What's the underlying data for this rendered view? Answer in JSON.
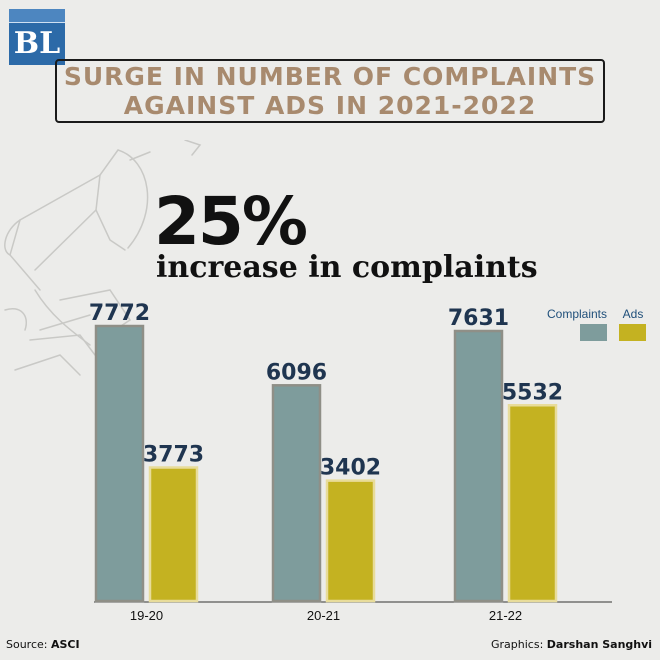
{
  "logo": {
    "text": "BL"
  },
  "title": {
    "line1": "SURGE IN NUMBER OF COMPLAINTS",
    "line2": "AGAINST ADS IN 2021-2022"
  },
  "headline": {
    "big": "25%",
    "sub": "increase in complaints"
  },
  "footer": {
    "source_label": "Source:",
    "source_value": "ASCI",
    "graphics_label": "Graphics:",
    "graphics_value": "Darshan Sanghvi"
  },
  "colors": {
    "complaints": "#7e9c9c",
    "ads": "#c4b221",
    "value_label": "#1f3550",
    "title": "#a88a6e"
  },
  "chart_data": {
    "type": "bar",
    "categories": [
      "19-20",
      "20-21",
      "21-22"
    ],
    "series": [
      {
        "name": "Complaints",
        "values": [
          7772,
          6096,
          7631
        ]
      },
      {
        "name": "Ads",
        "values": [
          3773,
          3402,
          5532
        ]
      }
    ],
    "ylim": [
      0,
      7772
    ],
    "legend": "top-right",
    "grid": false,
    "data_labels": true
  }
}
